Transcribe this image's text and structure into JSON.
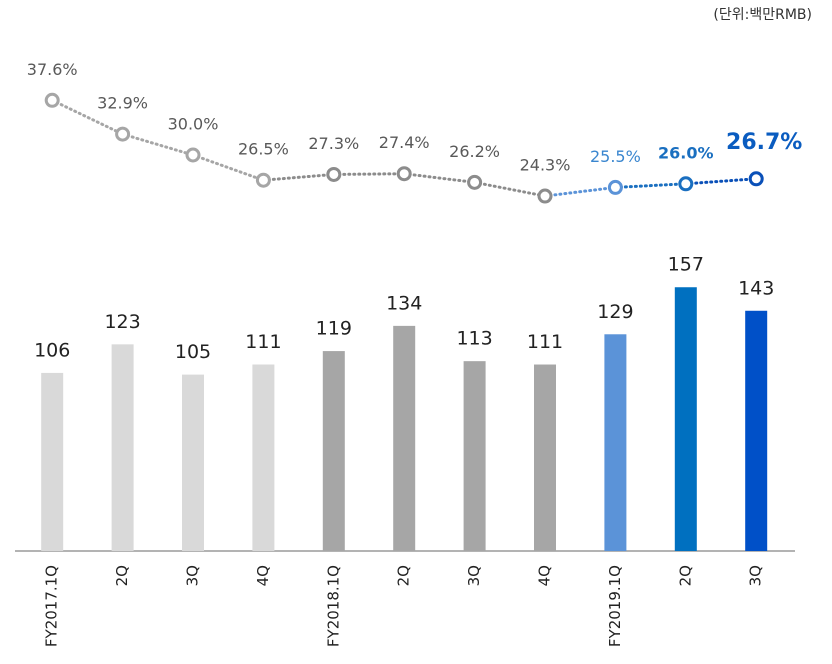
{
  "chart_data": [
    {
      "type": "bar",
      "unit_label": "(단위:백만RMB)",
      "categories": [
        "FY2017.1Q",
        "2Q",
        "3Q",
        "4Q",
        "FY2018.1Q",
        "2Q",
        "3Q",
        "4Q",
        "FY2019.1Q",
        "2Q",
        "3Q"
      ],
      "values": [
        106,
        123,
        105,
        111,
        119,
        134,
        113,
        111,
        129,
        157,
        143
      ],
      "colors": [
        "#d9d9d9",
        "#d9d9d9",
        "#d9d9d9",
        "#d9d9d9",
        "#a6a6a6",
        "#a6a6a6",
        "#a6a6a6",
        "#a6a6a6",
        "#5b93d8",
        "#0070c0",
        "#0050c8"
      ],
      "ylim": [
        0,
        300
      ]
    },
    {
      "type": "line",
      "values": [
        37.6,
        32.9,
        30.0,
        26.5,
        27.3,
        27.4,
        26.2,
        24.3,
        25.5,
        26.0,
        26.7
      ],
      "value_labels": [
        "37.6%",
        "32.9%",
        "30.0%",
        "26.5%",
        "27.3%",
        "27.4%",
        "26.2%",
        "24.3%",
        "25.5%",
        "26.0%",
        "26.7%"
      ],
      "colors": [
        "#a6a6a6",
        "#a6a6a6",
        "#a6a6a6",
        "#a6a6a6",
        "#8c8c8c",
        "#8c8c8c",
        "#8c8c8c",
        "#8c8c8c",
        "#5b93d8",
        "#1a6fc0",
        "#0a50b8"
      ],
      "label_colors": [
        "#595959",
        "#595959",
        "#595959",
        "#595959",
        "#595959",
        "#595959",
        "#595959",
        "#595959",
        "#3a86cf",
        "#1a6fc0",
        "#0a5cc0"
      ],
      "ylim": [
        -25,
        45
      ]
    }
  ]
}
